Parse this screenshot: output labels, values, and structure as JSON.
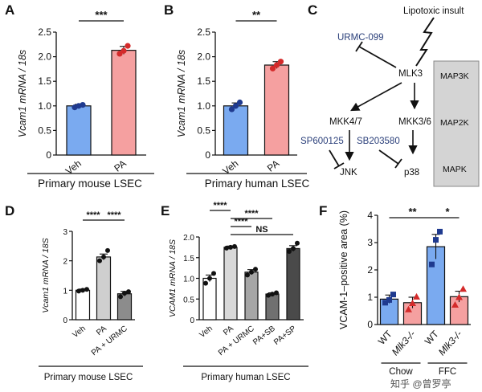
{
  "panels": {
    "A": "A",
    "B": "B",
    "C": "C",
    "D": "D",
    "E": "E",
    "F": "F"
  },
  "chart_data": [
    {
      "id": "A",
      "type": "bar",
      "ylabel": "Vcam1 mRNA / 18s",
      "ylim": [
        0,
        2.5
      ],
      "yticks": [
        "0",
        "0.5",
        "1.0",
        "1.5",
        "2.0",
        "2.5"
      ],
      "categories": [
        "Veh",
        "PA"
      ],
      "values": [
        1.0,
        2.13
      ],
      "errors": [
        0.03,
        0.08
      ],
      "points": [
        [
          0.97,
          1.0,
          1.02
        ],
        [
          2.06,
          2.12,
          2.22
        ]
      ],
      "colors": [
        "#7aaaf0",
        "#f5a0a0"
      ],
      "sig": [
        {
          "from": 0,
          "to": 1,
          "label": "***"
        }
      ],
      "caption": "Primary mouse LSEC"
    },
    {
      "id": "B",
      "type": "bar",
      "ylabel": "Vcam1 mRNA / 18s",
      "ylim": [
        0,
        2.5
      ],
      "yticks": [
        "0",
        "0.5",
        "1.0",
        "1.5",
        "2.0",
        "2.5"
      ],
      "categories": [
        "Veh",
        "PA"
      ],
      "values": [
        1.0,
        1.83
      ],
      "errors": [
        0.06,
        0.07
      ],
      "points": [
        [
          0.93,
          1.0,
          1.07
        ],
        [
          1.76,
          1.83,
          1.9
        ]
      ],
      "colors": [
        "#7aaaf0",
        "#f5a0a0"
      ],
      "sig": [
        {
          "from": 0,
          "to": 1,
          "label": "**"
        }
      ],
      "caption": "Primary human LSEC"
    },
    {
      "id": "D",
      "type": "bar",
      "ylabel": "Vcam1 mRNA / 18S",
      "ylim": [
        0,
        3
      ],
      "yticks": [
        "0",
        "1",
        "2",
        "3"
      ],
      "categories": [
        "Veh",
        "PA",
        "PA + URMC"
      ],
      "values": [
        1.0,
        2.13,
        0.88
      ],
      "errors": [
        0.04,
        0.1,
        0.08
      ],
      "points": [
        [
          0.97,
          1.0,
          1.03
        ],
        [
          2.0,
          2.13,
          2.35
        ],
        [
          0.78,
          0.9,
          0.95
        ]
      ],
      "colors": [
        "#ffffff",
        "#cfcfcf",
        "#8c8c8c"
      ],
      "sig": [
        {
          "from": 0,
          "to": 1,
          "label": "****"
        },
        {
          "from": 1,
          "to": 2,
          "label": "****"
        }
      ],
      "caption": "Primary mouse LSEC"
    },
    {
      "id": "E",
      "type": "bar",
      "ylabel": "VCAM1 mRNA / 18S",
      "ylim": [
        0,
        2.0
      ],
      "yticks": [
        "0",
        "0.5",
        "1.0",
        "1.5",
        "2.0"
      ],
      "categories": [
        "Veh",
        "PA",
        "PA + URMC",
        "PA+SB",
        "PA+SP"
      ],
      "values": [
        1.0,
        1.75,
        1.15,
        0.62,
        1.72
      ],
      "errors": [
        0.08,
        0.03,
        0.06,
        0.03,
        0.07
      ],
      "points": [
        [
          0.88,
          1.0,
          1.12
        ],
        [
          1.73,
          1.75,
          1.77
        ],
        [
          1.08,
          1.15,
          1.22
        ],
        [
          0.59,
          0.62,
          0.65
        ],
        [
          1.65,
          1.72,
          1.85
        ]
      ],
      "colors": [
        "#ffffff",
        "#d9d9d9",
        "#a6a6a6",
        "#707070",
        "#4a4a4a"
      ],
      "sig": [
        {
          "from": 0,
          "to": 1,
          "label": "****"
        },
        {
          "from": 1,
          "to": 3,
          "label": "****"
        },
        {
          "from": 1,
          "to": 2,
          "label": "****"
        },
        {
          "from": 1,
          "to": 4,
          "label": "NS"
        }
      ],
      "caption": "Primary human LSEC"
    },
    {
      "id": "F",
      "type": "bar",
      "ylabel": "VCAM-1–positive area (%)",
      "ylim": [
        0,
        4
      ],
      "yticks": [
        "0",
        "1",
        "2",
        "3",
        "4"
      ],
      "categories": [
        "WT",
        "Mlk3-/-",
        "WT",
        "Mlk3-/-"
      ],
      "groups": [
        "Chow",
        "FFC"
      ],
      "values": [
        0.93,
        0.8,
        2.85,
        1.02
      ],
      "errors": [
        0.15,
        0.2,
        0.45,
        0.2
      ],
      "points": [
        [
          0.8,
          0.9,
          1.1
        ],
        [
          0.55,
          0.78,
          1.02
        ],
        [
          2.2,
          3.1,
          3.4
        ],
        [
          0.72,
          1.0,
          1.3
        ]
      ],
      "colors": [
        "#7aaaf0",
        "#f5a0a0",
        "#7aaaf0",
        "#f5a0a0"
      ],
      "sig": [
        {
          "from": 0,
          "to": 2,
          "label": "**"
        },
        {
          "from": 2,
          "to": 3,
          "label": "*"
        }
      ]
    }
  ],
  "pathway": {
    "insult": "Lipotoxic insult",
    "inhibitor_top": "URMC-099",
    "mlk3": "MLK3",
    "mkk47": "MKK4/7",
    "mkk36": "MKK3/6",
    "jnk": "JNK",
    "p38": "p38",
    "inhibitor_jnk": "SP600125",
    "inhibitor_p38": "SB203580",
    "levels": [
      "MAP3K",
      "MAP2K",
      "MAPK"
    ]
  },
  "watermark": "知乎 @曾罗亭",
  "colors": {
    "veh_blue": "#7aaaf0",
    "pa_pink": "#f5a0a0",
    "point_blue": "#1f3a8f",
    "point_red": "#d42a2a",
    "drug_blue": "#2a3f7a",
    "side_box": "#d4d4d4"
  }
}
